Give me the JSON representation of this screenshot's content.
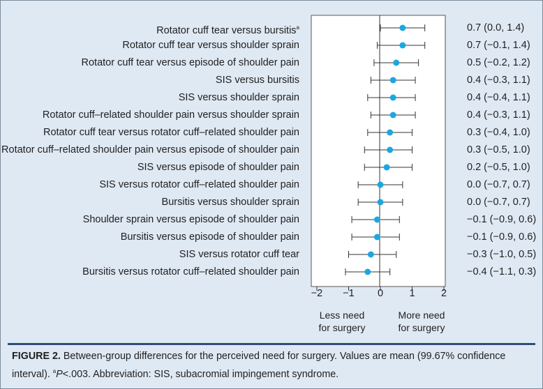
{
  "chart_data": {
    "type": "forest",
    "xlim": [
      -2,
      2
    ],
    "x_ticks": [
      "−2",
      "−1",
      "0",
      "1",
      "2"
    ],
    "left_direction_label": [
      "Less need",
      "for surgery"
    ],
    "right_direction_label": [
      "More need",
      "for surgery"
    ],
    "rows": [
      {
        "label": "Rotator cuff tear versus bursitis",
        "superscript": "a",
        "mean": 0.7,
        "lower": 0.0,
        "upper": 1.4,
        "ci_text": "0.7 (0.0, 1.4)"
      },
      {
        "label": "Rotator cuff tear versus shoulder sprain",
        "superscript": "",
        "mean": 0.7,
        "lower": -0.1,
        "upper": 1.4,
        "ci_text": "0.7 (−0.1, 1.4)"
      },
      {
        "label": "Rotator cuff tear versus episode of shoulder pain",
        "superscript": "",
        "mean": 0.5,
        "lower": -0.2,
        "upper": 1.2,
        "ci_text": "0.5 (−0.2, 1.2)"
      },
      {
        "label": "SIS versus bursitis",
        "superscript": "",
        "mean": 0.4,
        "lower": -0.3,
        "upper": 1.1,
        "ci_text": "0.4 (−0.3, 1.1)"
      },
      {
        "label": "SIS versus shoulder sprain",
        "superscript": "",
        "mean": 0.4,
        "lower": -0.4,
        "upper": 1.1,
        "ci_text": "0.4 (−0.4, 1.1)"
      },
      {
        "label": "Rotator cuff–related shoulder pain versus shoulder sprain",
        "superscript": "",
        "mean": 0.4,
        "lower": -0.3,
        "upper": 1.1,
        "ci_text": "0.4 (−0.3, 1.1)"
      },
      {
        "label": "Rotator cuff tear versus rotator cuff–related shoulder pain",
        "superscript": "",
        "mean": 0.3,
        "lower": -0.4,
        "upper": 1.0,
        "ci_text": "0.3 (−0.4, 1.0)"
      },
      {
        "label": "Rotator cuff–related shoulder pain versus episode of shoulder pain",
        "superscript": "",
        "mean": 0.3,
        "lower": -0.5,
        "upper": 1.0,
        "ci_text": "0.3 (−0.5, 1.0)"
      },
      {
        "label": "SIS versus episode of shoulder pain",
        "superscript": "",
        "mean": 0.2,
        "lower": -0.5,
        "upper": 1.0,
        "ci_text": "0.2 (−0.5, 1.0)"
      },
      {
        "label": "SIS versus rotator cuff–related shoulder pain",
        "superscript": "",
        "mean": 0.0,
        "lower": -0.7,
        "upper": 0.7,
        "ci_text": "0.0 (−0.7, 0.7)"
      },
      {
        "label": "Bursitis versus shoulder sprain",
        "superscript": "",
        "mean": 0.0,
        "lower": -0.7,
        "upper": 0.7,
        "ci_text": "0.0 (−0.7, 0.7)"
      },
      {
        "label": "Shoulder sprain versus episode of shoulder pain",
        "superscript": "",
        "mean": -0.1,
        "lower": -0.9,
        "upper": 0.6,
        "ci_text": "−0.1 (−0.9, 0.6)"
      },
      {
        "label": "Bursitis versus episode of shoulder pain",
        "superscript": "",
        "mean": -0.1,
        "lower": -0.9,
        "upper": 0.6,
        "ci_text": "−0.1 (−0.9, 0.6)"
      },
      {
        "label": "SIS versus rotator cuff tear",
        "superscript": "",
        "mean": -0.3,
        "lower": -1.0,
        "upper": 0.5,
        "ci_text": "−0.3 (−1.0, 0.5)"
      },
      {
        "label": "Bursitis versus rotator cuff–related shoulder pain",
        "superscript": "",
        "mean": -0.4,
        "lower": -1.1,
        "upper": 0.3,
        "ci_text": "−0.4 (−1.1, 0.3)"
      }
    ],
    "point_color": "#1ea6e0",
    "line_color": "#333333",
    "panel_color": "#ffffff",
    "background_color": "#dfe9f4"
  },
  "caption": {
    "figure_label": "FIGURE 2.",
    "text": " Between-group differences for the perceived need for surgery. Values are mean (99.67% confidence interval). ",
    "footnote_mark": "a",
    "footnote_text": "P<.003. Abbreviation: SIS, subacromial impingement syndrome."
  },
  "divider_color": "#2b4f78"
}
